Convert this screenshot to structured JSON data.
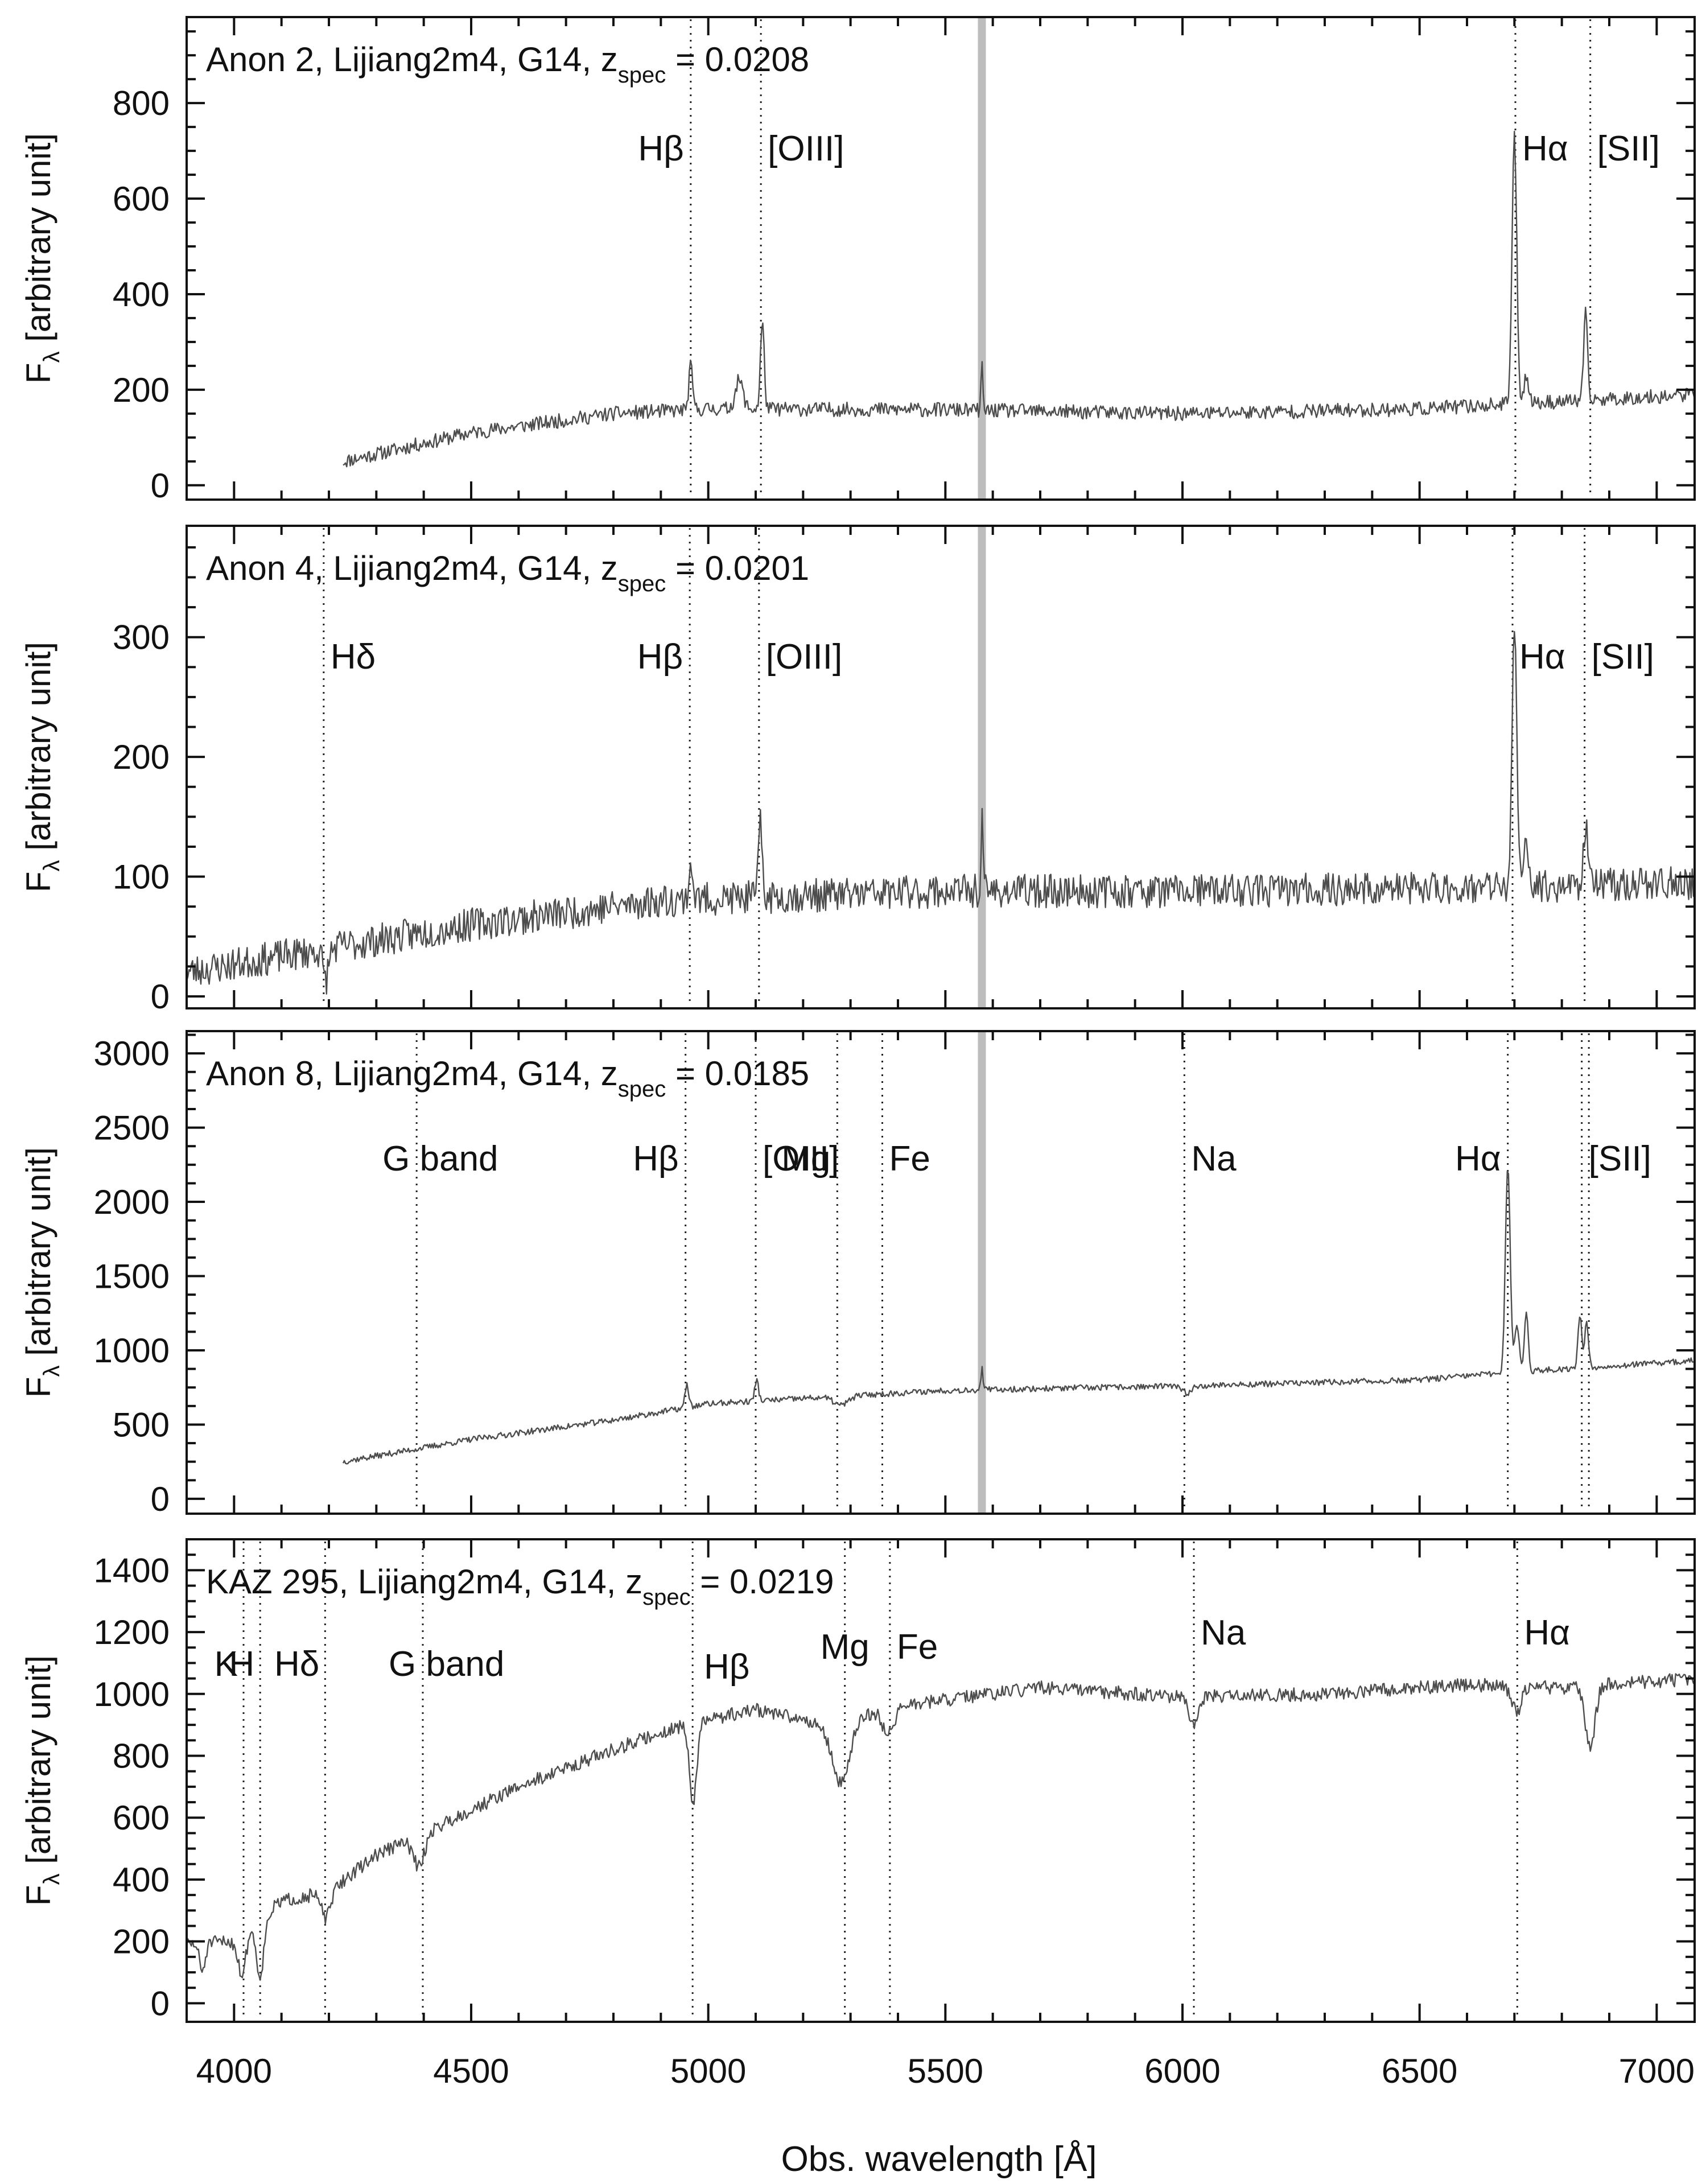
{
  "figure": {
    "xlabel": "Obs. wavelength [Å]",
    "xlim": [
      3900,
      7080
    ],
    "xticks": [
      4000,
      4500,
      5000,
      5500,
      6000,
      6500,
      7000
    ],
    "ylabel": {
      "symbol": "F",
      "subscript": "λ",
      "text": "[arbitrary unit]"
    },
    "colors": {
      "axes": "#111111",
      "spectrum": "#4d4d4d",
      "marker": "#222222",
      "sky_band": "#bdbdbd"
    }
  },
  "chart_data": [
    {
      "type": "line",
      "title": {
        "name": "Anon 2",
        "telescope": "Lijiang2m4",
        "grism": "G14",
        "z_symbol": "z",
        "z_sub": "spec",
        "z_value": "= 0.0208"
      },
      "xlabel": "Obs. wavelength [Å]",
      "ylabel": "Fλ [arbitrary unit]",
      "xlim": [
        3900,
        7080
      ],
      "ylim": [
        -30,
        980
      ],
      "yticks": [
        0,
        200,
        400,
        600,
        800
      ],
      "sky_band": 5577,
      "spectrum": {
        "start": 4230,
        "end": 7080,
        "continuum": [
          [
            4230,
            50
          ],
          [
            4500,
            110
          ],
          [
            4800,
            150
          ],
          [
            5000,
            160
          ],
          [
            5500,
            158
          ],
          [
            6000,
            150
          ],
          [
            6500,
            160
          ],
          [
            7080,
            190
          ]
        ],
        "noise": 15,
        "seed": 11
      },
      "emission": [
        [
          4963,
          90,
          4
        ],
        [
          5065,
          60,
          8
        ],
        [
          5114,
          180,
          4
        ],
        [
          5577,
          90,
          2
        ],
        [
          6700,
          560,
          5
        ],
        [
          6725,
          60,
          5
        ],
        [
          6850,
          180,
          4
        ]
      ],
      "absorption": [],
      "lines": [
        {
          "label": "Hβ",
          "wavelength": 4963
        },
        {
          "label": "[OIII]",
          "wavelength": 5111
        },
        {
          "label": "Hα",
          "wavelength": 6702
        },
        {
          "label": "[SII]",
          "wavelength": 6860
        }
      ]
    },
    {
      "type": "line",
      "title": {
        "name": "Anon 4",
        "telescope": "Lijiang2m4",
        "grism": "G14",
        "z_symbol": "z",
        "z_sub": "spec",
        "z_value": "= 0.0201"
      },
      "xlabel": "Obs. wavelength [Å]",
      "ylabel": "Fλ [arbitrary unit]",
      "xlim": [
        3900,
        7080
      ],
      "ylim": [
        -10,
        393
      ],
      "yticks": [
        0,
        100,
        200,
        300
      ],
      "sky_band": 5577,
      "spectrum": {
        "start": 3900,
        "end": 7080,
        "continuum": [
          [
            3900,
            20
          ],
          [
            4200,
            40
          ],
          [
            4500,
            60
          ],
          [
            4900,
            80
          ],
          [
            5500,
            88
          ],
          [
            6000,
            88
          ],
          [
            6500,
            90
          ],
          [
            7080,
            95
          ]
        ],
        "noise": 14,
        "seed": 23
      },
      "emission": [
        [
          4963,
          30,
          4
        ],
        [
          5110,
          60,
          4
        ],
        [
          5577,
          60,
          2
        ],
        [
          6700,
          210,
          5
        ],
        [
          6725,
          40,
          5
        ],
        [
          6850,
          50,
          5
        ]
      ],
      "absorption": [
        [
          4193,
          25,
          6
        ]
      ],
      "lines": [
        {
          "label": "Hδ",
          "wavelength": 4189
        },
        {
          "label": "Hβ",
          "wavelength": 4961
        },
        {
          "label": "[OIII]",
          "wavelength": 5107
        },
        {
          "label": "Hα",
          "wavelength": 6696
        },
        {
          "label": "[SII]",
          "wavelength": 6848
        }
      ]
    },
    {
      "type": "line",
      "title": {
        "name": "Anon 8",
        "telescope": "Lijiang2m4",
        "grism": "G14",
        "z_symbol": "z",
        "z_sub": "spec",
        "z_value": "= 0.0185"
      },
      "xlabel": "Obs. wavelength [Å]",
      "ylabel": "Fλ [arbitrary unit]",
      "xlim": [
        3900,
        7080
      ],
      "ylim": [
        -100,
        3150
      ],
      "yticks": [
        0,
        500,
        1000,
        1500,
        2000,
        2500,
        3000
      ],
      "sky_band": 5577,
      "spectrum": {
        "start": 4230,
        "end": 7080,
        "continuum": [
          [
            4230,
            250
          ],
          [
            4500,
            400
          ],
          [
            4800,
            530
          ],
          [
            5000,
            640
          ],
          [
            5500,
            730
          ],
          [
            6000,
            760
          ],
          [
            6500,
            800
          ],
          [
            6680,
            850
          ],
          [
            7080,
            930
          ]
        ],
        "noise": 20,
        "seed": 37
      },
      "emission": [
        [
          4955,
          150,
          4
        ],
        [
          5102,
          140,
          4
        ],
        [
          5577,
          150,
          2
        ],
        [
          6686,
          1400,
          5
        ],
        [
          6705,
          300,
          5
        ],
        [
          6725,
          400,
          4
        ],
        [
          6838,
          350,
          4
        ],
        [
          6852,
          300,
          4
        ]
      ],
      "absorption": [
        [
          5280,
          60,
          15
        ],
        [
          6008,
          50,
          10
        ]
      ],
      "lines": [
        {
          "label": "G band",
          "wavelength": 4385
        },
        {
          "label": "Hβ",
          "wavelength": 4952
        },
        {
          "label": "[OIII]",
          "wavelength": 5100
        },
        {
          "label": "Mg",
          "wavelength": 5272
        },
        {
          "label": "Fe",
          "wavelength": 5367
        },
        {
          "label": "Na",
          "wavelength": 6004
        },
        {
          "label": "Hα",
          "wavelength": 6686
        },
        {
          "label": "[SII]",
          "wavelength": 6842
        },
        {
          "label": "",
          "wavelength": 6857
        }
      ]
    },
    {
      "type": "line",
      "title": {
        "name": "KAZ 295",
        "telescope": "Lijiang2m4",
        "grism": "G14",
        "z_symbol": "z",
        "z_sub": "spec",
        "z_value": "= 0.0219"
      },
      "xlabel": "Obs. wavelength [Å]",
      "ylabel": "Fλ [arbitrary unit]",
      "xlim": [
        3900,
        7080
      ],
      "ylim": [
        -60,
        1500
      ],
      "yticks": [
        0,
        200,
        400,
        600,
        800,
        1000,
        1200,
        1400
      ],
      "sky_band": null,
      "spectrum": {
        "start": 3900,
        "end": 7080,
        "continuum": [
          [
            3900,
            190
          ],
          [
            4000,
            200
          ],
          [
            4100,
            330
          ],
          [
            4200,
            360
          ],
          [
            4300,
            480
          ],
          [
            4400,
            550
          ],
          [
            4600,
            700
          ],
          [
            4800,
            820
          ],
          [
            4950,
            900
          ],
          [
            5100,
            950
          ],
          [
            5250,
            900
          ],
          [
            5400,
            960
          ],
          [
            5600,
            1000
          ],
          [
            5700,
            1020
          ],
          [
            6000,
            990
          ],
          [
            6300,
            1000
          ],
          [
            6600,
            1030
          ],
          [
            6800,
            1020
          ],
          [
            7080,
            1050
          ]
        ],
        "noise": 22,
        "seed": 51
      },
      "emission": [],
      "absorption": [
        [
          3933,
          90,
          6
        ],
        [
          4017,
          130,
          8
        ],
        [
          4055,
          180,
          8
        ],
        [
          4194,
          80,
          10
        ],
        [
          4390,
          100,
          12
        ],
        [
          4968,
          250,
          8
        ],
        [
          5280,
          200,
          18
        ],
        [
          5380,
          80,
          12
        ],
        [
          6024,
          100,
          10
        ],
        [
          6705,
          80,
          10
        ],
        [
          6860,
          200,
          10
        ]
      ],
      "lines": [
        {
          "label": "K",
          "wavelength": 4020
        },
        {
          "label": "H",
          "wavelength": 4055
        },
        {
          "label": "Hδ",
          "wavelength": 4192
        },
        {
          "label": "G band",
          "wavelength": 4398
        },
        {
          "label": "Hβ",
          "wavelength": 4967
        },
        {
          "label": "Mg",
          "wavelength": 5288
        },
        {
          "label": "Fe",
          "wavelength": 5383
        },
        {
          "label": "Na",
          "wavelength": 6024
        },
        {
          "label": "Hα",
          "wavelength": 6706
        }
      ]
    }
  ]
}
